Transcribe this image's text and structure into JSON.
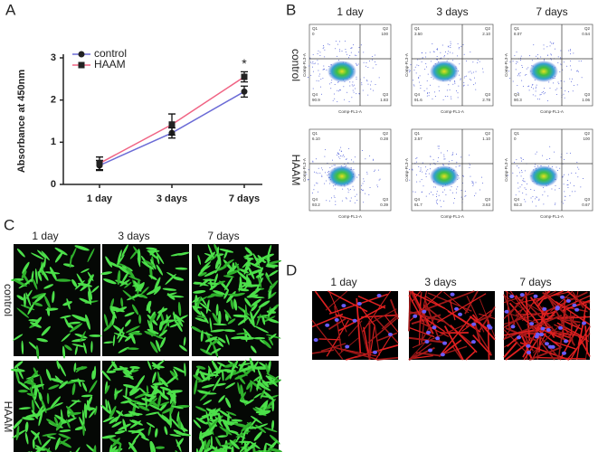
{
  "panel_letters": [
    "A",
    "B",
    "C",
    "D"
  ],
  "chart_data": {
    "type": "line",
    "ylabel": "Absorbance at 450nm",
    "categories": [
      "1 day",
      "3 days",
      "7 days"
    ],
    "series": [
      {
        "name": "control",
        "color": "#6b6bd6",
        "values": [
          0.45,
          1.22,
          2.2
        ],
        "errors": [
          0.12,
          0.12,
          0.13
        ]
      },
      {
        "name": "HAAM",
        "color": "#f06484",
        "values": [
          0.5,
          1.42,
          2.55
        ],
        "errors": [
          0.15,
          0.25,
          0.12
        ]
      }
    ],
    "ylim": [
      0,
      3
    ],
    "yticks": [
      0,
      1,
      2,
      3
    ],
    "annotation": "*",
    "legend": "upper-left"
  },
  "flow": {
    "columns": [
      "1 day",
      "3 days",
      "7 days"
    ],
    "x_label": "Comp-FL1-A",
    "y_label": "Comp-FL3-A",
    "quadrant_names": [
      "Q1",
      "Q2",
      "Q3",
      "Q4"
    ],
    "rows": [
      {
        "label": "control",
        "plots": [
          {
            "Q1": "0",
            "Q2": "100",
            "Q3": "1.83",
            "Q4": "90.9"
          },
          {
            "Q1": "3.50",
            "Q2": "2.10",
            "Q3": "2.78",
            "Q4": "91.6"
          },
          {
            "Q1": "8.07",
            "Q2": "0.54",
            "Q3": "1.06",
            "Q4": "90.3"
          }
        ]
      },
      {
        "label": "HAAM",
        "plots": [
          {
            "Q1": "6.10",
            "Q2": "0.28",
            "Q3": "0.39",
            "Q4": "93.2"
          },
          {
            "Q1": "3.57",
            "Q2": "1.10",
            "Q3": "3.63",
            "Q4": "91.7"
          },
          {
            "Q1": "0",
            "Q2": "100",
            "Q3": "0.67",
            "Q4": "92.3"
          }
        ]
      }
    ]
  },
  "live_dead": {
    "columns": [
      "1 day",
      "3 days",
      "7 days"
    ],
    "rows": [
      "control",
      "HAAM"
    ]
  },
  "cytoskeleton": {
    "columns": [
      "1 day",
      "3 days",
      "7 days"
    ]
  }
}
